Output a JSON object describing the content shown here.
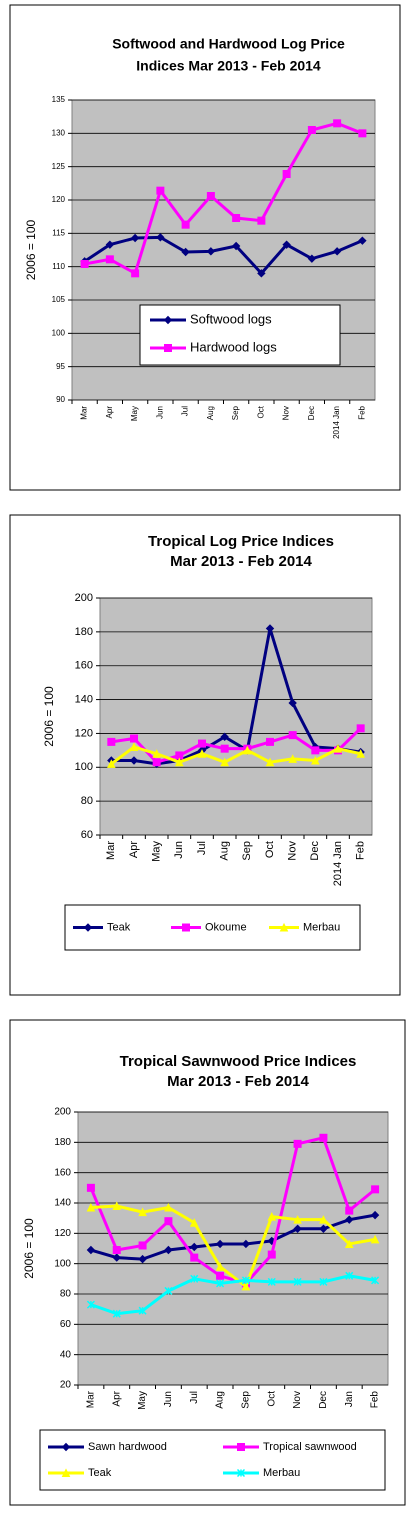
{
  "chart_data": [
    {
      "type": "line",
      "title": [
        "Softwood and Hardwood Log Price",
        "Indices Mar 2013 - Feb 2014"
      ],
      "y_label": "2006 = 100",
      "categories": [
        "Mar",
        "Apr",
        "May",
        "Jun",
        "Jul",
        "Aug",
        "Sep",
        "Oct",
        "Nov",
        "Dec",
        "2014 Jan",
        "Feb"
      ],
      "series": [
        {
          "name": "Softwood logs",
          "color": "#000080",
          "marker": "diamond",
          "values": [
            110.8,
            113.3,
            114.3,
            114.4,
            112.2,
            112.3,
            113.1,
            109.0,
            113.3,
            111.2,
            112.3,
            113.9
          ]
        },
        {
          "name": "Hardwood logs",
          "color": "#ff00ff",
          "marker": "square",
          "values": [
            110.4,
            111.1,
            109.0,
            121.4,
            116.3,
            120.6,
            117.3,
            116.9,
            123.9,
            130.5,
            131.5,
            130.0
          ]
        }
      ],
      "ylim": [
        90,
        135
      ],
      "yticks": [
        90,
        95,
        100,
        105,
        110,
        115,
        120,
        125,
        130,
        135
      ],
      "grid": true,
      "legend": "inside"
    },
    {
      "type": "line",
      "title": [
        "Tropical Log Price Indices",
        "Mar 2013 - Feb 2014"
      ],
      "y_label": "2006 = 100",
      "categories": [
        "Mar",
        "Apr",
        "May",
        "Jun",
        "Jul",
        "Aug",
        "Sep",
        "Oct",
        "Nov",
        "Dec",
        "2014 Jan",
        "Feb"
      ],
      "series": [
        {
          "name": "Teak",
          "color": "#000080",
          "marker": "diamond",
          "values": [
            104,
            104,
            102,
            104,
            110,
            118,
            110,
            182,
            138,
            112,
            111,
            109
          ]
        },
        {
          "name": "Okoume",
          "color": "#ff00ff",
          "marker": "square",
          "values": [
            115,
            117,
            103,
            107,
            114,
            111,
            111,
            115,
            119,
            110,
            110,
            123
          ]
        },
        {
          "name": "Merbau",
          "color": "#ffff00",
          "marker": "triangle",
          "values": [
            102,
            112,
            108,
            103,
            108,
            103,
            110,
            103,
            105,
            104,
            111,
            108
          ]
        }
      ],
      "ylim": [
        60,
        200
      ],
      "yticks": [
        60,
        80,
        100,
        120,
        140,
        160,
        180,
        200
      ],
      "grid": true,
      "legend": "bottom"
    },
    {
      "type": "line",
      "title": [
        "Tropical Sawnwood Price Indices",
        "Mar 2013 - Feb 2014"
      ],
      "y_label": "2006 = 100",
      "categories": [
        "Mar",
        "Apr",
        "May",
        "Jun",
        "Jul",
        "Aug",
        "Sep",
        "Oct",
        "Nov",
        "Dec",
        "Jan",
        "Feb"
      ],
      "series": [
        {
          "name": "Sawn hardwood",
          "color": "#000080",
          "marker": "diamond",
          "values": [
            109,
            104,
            103,
            109,
            111,
            113,
            113,
            115,
            123,
            123,
            129,
            132
          ]
        },
        {
          "name": "Tropical sawnwood",
          "color": "#ff00ff",
          "marker": "square",
          "values": [
            150,
            109,
            112,
            128,
            104,
            92,
            87,
            106,
            179,
            183,
            135,
            149
          ]
        },
        {
          "name": "Teak",
          "color": "#ffff00",
          "marker": "triangle",
          "values": [
            137,
            138,
            134,
            137,
            127,
            98,
            85,
            131,
            129,
            129,
            113,
            116
          ]
        },
        {
          "name": "Merbau",
          "color": "#00ffff",
          "marker": "x",
          "values": [
            73,
            67,
            69,
            82,
            90,
            87,
            89,
            88,
            88,
            88,
            92,
            89
          ]
        }
      ],
      "ylim": [
        20,
        200
      ],
      "yticks": [
        20,
        40,
        60,
        80,
        100,
        120,
        140,
        160,
        180,
        200
      ],
      "grid": true,
      "legend": "bottom-grid"
    }
  ]
}
